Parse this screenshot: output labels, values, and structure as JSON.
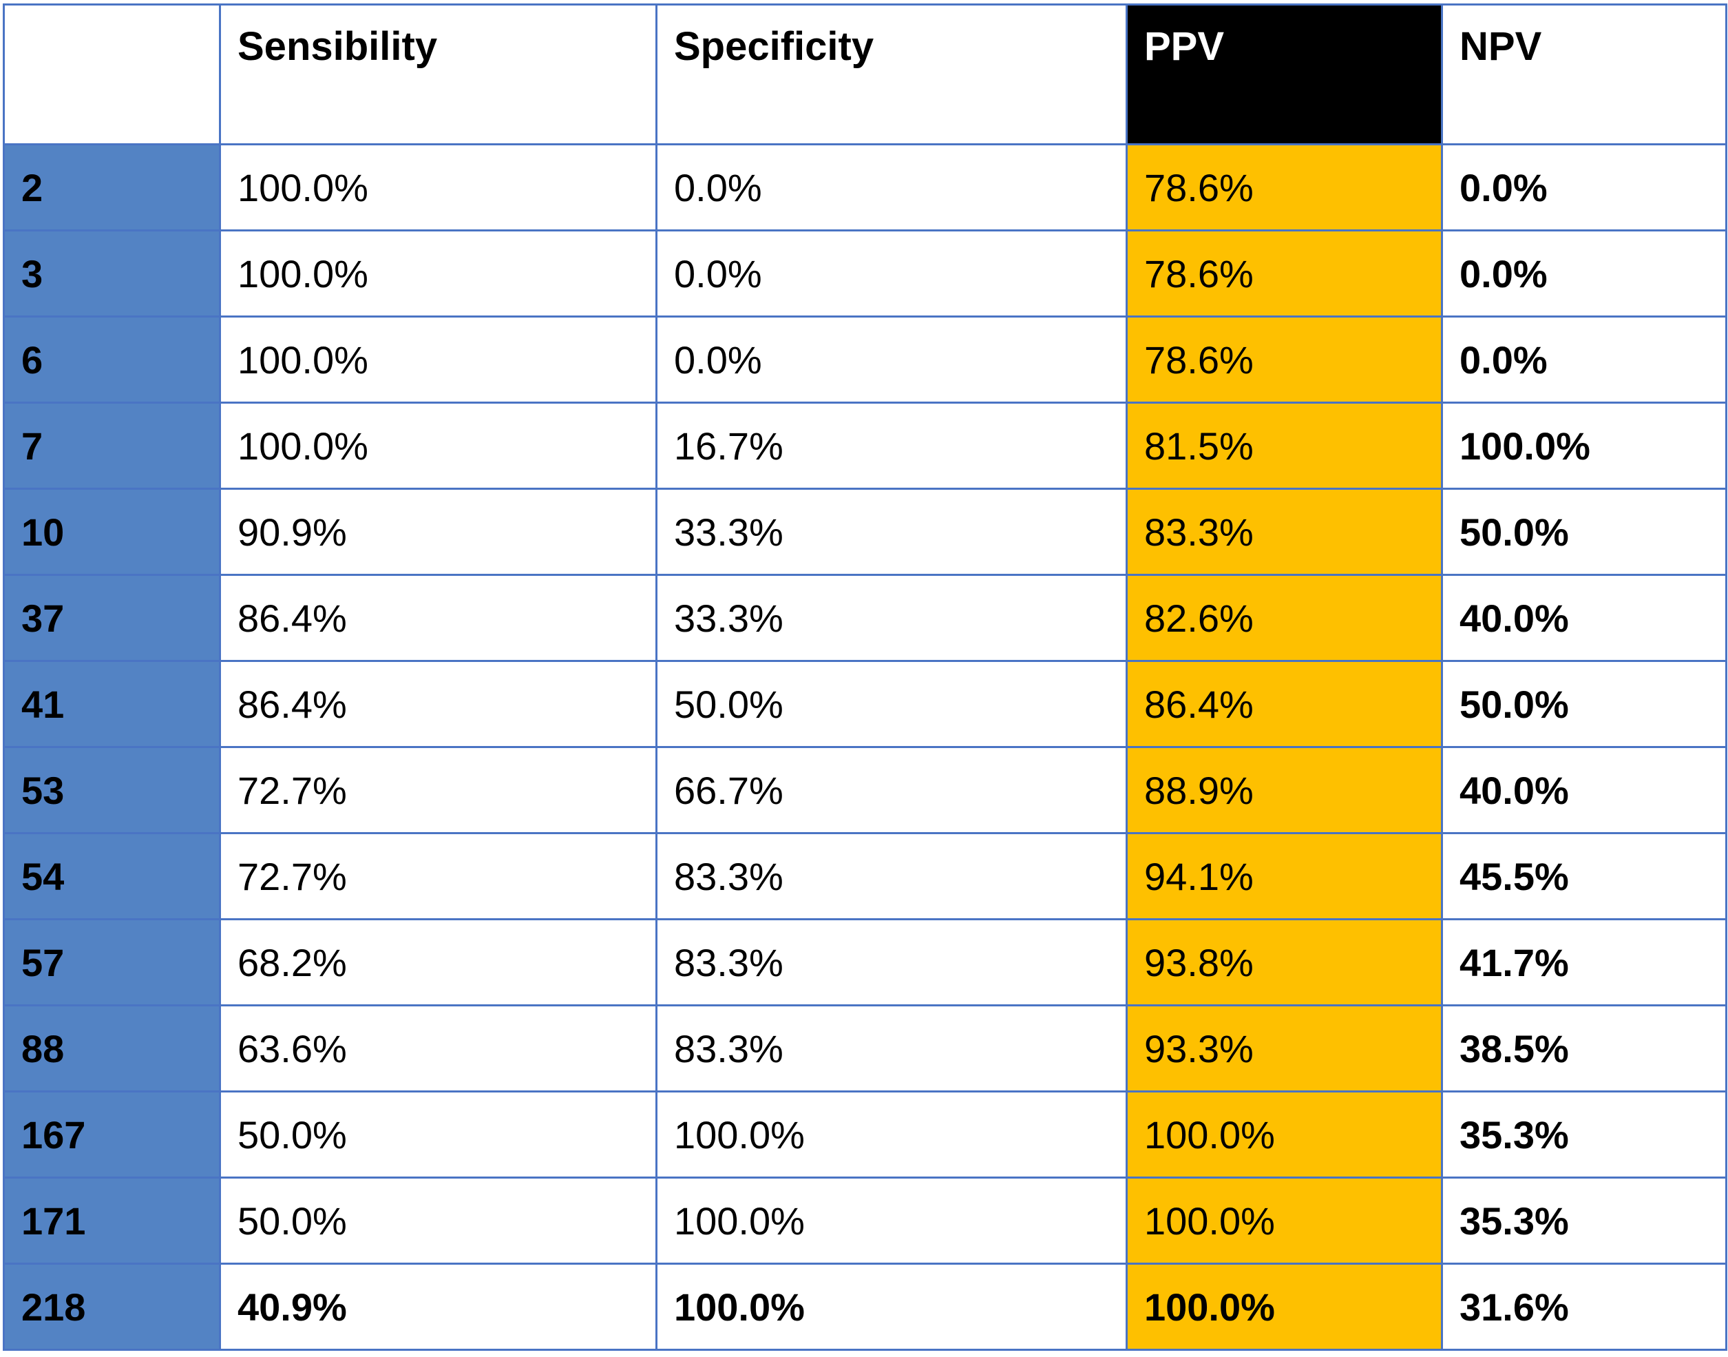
{
  "table": {
    "headers": [
      "",
      "Sensibility",
      "Specificity",
      "PPV",
      "NPV"
    ],
    "rows": [
      {
        "label": "2",
        "sensibility": "100.0%",
        "specificity": "0.0%",
        "ppv": "78.6%",
        "npv": "0.0%"
      },
      {
        "label": "3",
        "sensibility": "100.0%",
        "specificity": "0.0%",
        "ppv": "78.6%",
        "npv": "0.0%"
      },
      {
        "label": "6",
        "sensibility": "100.0%",
        "specificity": "0.0%",
        "ppv": "78.6%",
        "npv": "0.0%"
      },
      {
        "label": "7",
        "sensibility": "100.0%",
        "specificity": "16.7%",
        "ppv": "81.5%",
        "npv": "100.0%"
      },
      {
        "label": "10",
        "sensibility": "90.9%",
        "specificity": "33.3%",
        "ppv": "83.3%",
        "npv": "50.0%"
      },
      {
        "label": "37",
        "sensibility": "86.4%",
        "specificity": "33.3%",
        "ppv": "82.6%",
        "npv": "40.0%"
      },
      {
        "label": "41",
        "sensibility": "86.4%",
        "specificity": "50.0%",
        "ppv": "86.4%",
        "npv": "50.0%"
      },
      {
        "label": "53",
        "sensibility": "72.7%",
        "specificity": "66.7%",
        "ppv": "88.9%",
        "npv": "40.0%"
      },
      {
        "label": "54",
        "sensibility": "72.7%",
        "specificity": "83.3%",
        "ppv": "94.1%",
        "npv": "45.5%"
      },
      {
        "label": "57",
        "sensibility": "68.2%",
        "specificity": "83.3%",
        "ppv": "93.8%",
        "npv": "41.7%"
      },
      {
        "label": "88",
        "sensibility": "63.6%",
        "specificity": "83.3%",
        "ppv": "93.3%",
        "npv": "38.5%"
      },
      {
        "label": "167",
        "sensibility": "50.0%",
        "specificity": "100.0%",
        "ppv": "100.0%",
        "npv": "35.3%"
      },
      {
        "label": "171",
        "sensibility": "50.0%",
        "specificity": "100.0%",
        "ppv": "100.0%",
        "npv": "35.3%"
      },
      {
        "label": "218",
        "sensibility": "40.9%",
        "specificity": "100.0%",
        "ppv": "100.0%",
        "npv": "31.6%",
        "bold_row": true
      }
    ]
  },
  "colors": {
    "row_header_fill": "#5383c4",
    "ppv_fill": "#fec000",
    "ppv_header_fill": "#000000",
    "grid_line": "#4a74c4"
  }
}
